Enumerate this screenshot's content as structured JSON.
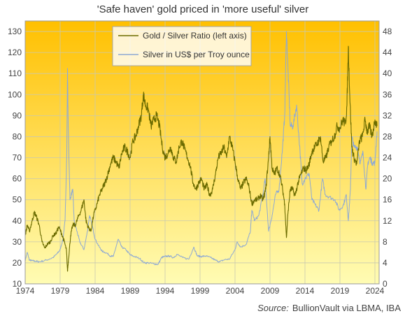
{
  "chart_data": {
    "type": "line",
    "title": "'Safe haven'  gold priced in 'more useful'  silver",
    "source": {
      "label": "Source:",
      "text": "BullionVault via  LBMA, IBA"
    },
    "x_range": [
      1974,
      2024.6
    ],
    "x_ticks": [
      "1974",
      "1979",
      "1984",
      "1989",
      "1994",
      "1999",
      "2004",
      "2009",
      "2014",
      "2019",
      "2024"
    ],
    "y_left": {
      "range": [
        10,
        135
      ],
      "ticks": [
        10,
        20,
        30,
        40,
        50,
        60,
        70,
        80,
        90,
        100,
        110,
        120,
        130
      ]
    },
    "y_right": {
      "range": [
        0,
        50
      ],
      "ticks": [
        0,
        4,
        8,
        12,
        16,
        20,
        24,
        28,
        32,
        36,
        40,
        44,
        48
      ]
    },
    "grid": true,
    "legend": {
      "placement": "top-center"
    },
    "colors": {
      "ratio": "#6b6b00",
      "silver": "#8ea9d4",
      "bg_top": "#ffc000",
      "bg_bottom": "#fffcb4",
      "grid": "#c9c9b0"
    },
    "series": [
      {
        "name": "Gold / Silver Ratio (left axis)",
        "axis": "left",
        "points": [
          [
            1974.0,
            33
          ],
          [
            1974.3,
            38
          ],
          [
            1974.6,
            35
          ],
          [
            1975.0,
            40
          ],
          [
            1975.3,
            44
          ],
          [
            1975.6,
            42
          ],
          [
            1976.0,
            38
          ],
          [
            1976.4,
            30
          ],
          [
            1976.8,
            27
          ],
          [
            1977.2,
            29
          ],
          [
            1977.6,
            30
          ],
          [
            1978.0,
            33
          ],
          [
            1978.4,
            34
          ],
          [
            1978.8,
            37
          ],
          [
            1979.2,
            34
          ],
          [
            1979.6,
            30
          ],
          [
            1979.9,
            26
          ],
          [
            1980.05,
            16
          ],
          [
            1980.2,
            22
          ],
          [
            1980.5,
            33
          ],
          [
            1980.8,
            38
          ],
          [
            1981.2,
            38
          ],
          [
            1981.6,
            42
          ],
          [
            1982.0,
            45
          ],
          [
            1982.4,
            50
          ],
          [
            1982.7,
            40
          ],
          [
            1983.0,
            37
          ],
          [
            1983.4,
            35
          ],
          [
            1983.8,
            43
          ],
          [
            1984.2,
            47
          ],
          [
            1984.6,
            52
          ],
          [
            1985.0,
            55
          ],
          [
            1985.4,
            58
          ],
          [
            1985.8,
            62
          ],
          [
            1986.2,
            67
          ],
          [
            1986.6,
            70
          ],
          [
            1987.0,
            68
          ],
          [
            1987.4,
            65
          ],
          [
            1987.8,
            72
          ],
          [
            1988.2,
            75
          ],
          [
            1988.6,
            73
          ],
          [
            1989.0,
            70
          ],
          [
            1989.4,
            78
          ],
          [
            1989.8,
            80
          ],
          [
            1990.2,
            85
          ],
          [
            1990.6,
            90
          ],
          [
            1990.9,
            100
          ],
          [
            1991.2,
            95
          ],
          [
            1991.6,
            93
          ],
          [
            1992.0,
            85
          ],
          [
            1992.4,
            88
          ],
          [
            1992.8,
            90
          ],
          [
            1993.2,
            85
          ],
          [
            1993.6,
            75
          ],
          [
            1994.0,
            70
          ],
          [
            1994.4,
            72
          ],
          [
            1994.8,
            75
          ],
          [
            1995.2,
            70
          ],
          [
            1995.6,
            68
          ],
          [
            1996.0,
            75
          ],
          [
            1996.4,
            78
          ],
          [
            1996.8,
            74
          ],
          [
            1997.2,
            70
          ],
          [
            1997.6,
            66
          ],
          [
            1998.0,
            58
          ],
          [
            1998.4,
            55
          ],
          [
            1998.8,
            58
          ],
          [
            1999.2,
            60
          ],
          [
            1999.6,
            55
          ],
          [
            2000.0,
            57
          ],
          [
            2000.4,
            52
          ],
          [
            2000.8,
            55
          ],
          [
            2001.2,
            62
          ],
          [
            2001.6,
            70
          ],
          [
            2002.0,
            72
          ],
          [
            2002.4,
            75
          ],
          [
            2002.8,
            70
          ],
          [
            2003.2,
            80
          ],
          [
            2003.6,
            75
          ],
          [
            2004.0,
            68
          ],
          [
            2004.4,
            60
          ],
          [
            2004.8,
            55
          ],
          [
            2005.2,
            58
          ],
          [
            2005.6,
            60
          ],
          [
            2006.0,
            56
          ],
          [
            2006.4,
            48
          ],
          [
            2006.8,
            50
          ],
          [
            2007.2,
            50
          ],
          [
            2007.6,
            52
          ],
          [
            2008.0,
            50
          ],
          [
            2008.4,
            55
          ],
          [
            2008.8,
            70
          ],
          [
            2009.0,
            80
          ],
          [
            2009.3,
            65
          ],
          [
            2009.6,
            62
          ],
          [
            2010.0,
            65
          ],
          [
            2010.4,
            62
          ],
          [
            2010.8,
            55
          ],
          [
            2011.1,
            48
          ],
          [
            2011.35,
            32
          ],
          [
            2011.6,
            45
          ],
          [
            2011.9,
            55
          ],
          [
            2012.2,
            55
          ],
          [
            2012.6,
            52
          ],
          [
            2013.0,
            58
          ],
          [
            2013.4,
            62
          ],
          [
            2013.8,
            65
          ],
          [
            2014.2,
            64
          ],
          [
            2014.6,
            67
          ],
          [
            2015.0,
            73
          ],
          [
            2015.4,
            75
          ],
          [
            2015.8,
            77
          ],
          [
            2016.2,
            80
          ],
          [
            2016.6,
            68
          ],
          [
            2017.0,
            70
          ],
          [
            2017.4,
            75
          ],
          [
            2017.8,
            78
          ],
          [
            2018.2,
            80
          ],
          [
            2018.6,
            85
          ],
          [
            2019.0,
            84
          ],
          [
            2019.4,
            88
          ],
          [
            2019.8,
            86
          ],
          [
            2020.0,
            95
          ],
          [
            2020.2,
            123
          ],
          [
            2020.4,
            100
          ],
          [
            2020.7,
            75
          ],
          [
            2021.0,
            70
          ],
          [
            2021.4,
            67
          ],
          [
            2021.8,
            78
          ],
          [
            2022.2,
            80
          ],
          [
            2022.6,
            88
          ],
          [
            2022.9,
            82
          ],
          [
            2023.2,
            85
          ],
          [
            2023.6,
            80
          ],
          [
            2024.0,
            88
          ],
          [
            2024.3,
            85
          ]
        ]
      },
      {
        "name": "Silver in US$ per Troy ounce",
        "axis": "right",
        "points": [
          [
            1974.0,
            4.5
          ],
          [
            1974.3,
            6.0
          ],
          [
            1974.6,
            4.5
          ],
          [
            1975.0,
            4.4
          ],
          [
            1975.5,
            4.3
          ],
          [
            1976.0,
            4.2
          ],
          [
            1977.0,
            4.5
          ],
          [
            1978.0,
            5.0
          ],
          [
            1978.6,
            5.8
          ],
          [
            1979.0,
            6.5
          ],
          [
            1979.4,
            8.5
          ],
          [
            1979.7,
            12
          ],
          [
            1979.95,
            25
          ],
          [
            1980.05,
            41
          ],
          [
            1980.15,
            30
          ],
          [
            1980.4,
            16
          ],
          [
            1980.8,
            18
          ],
          [
            1981.0,
            12
          ],
          [
            1981.4,
            10
          ],
          [
            1981.8,
            8
          ],
          [
            1982.4,
            6.5
          ],
          [
            1982.9,
            10
          ],
          [
            1983.2,
            13
          ],
          [
            1983.6,
            11
          ],
          [
            1984.0,
            8.5
          ],
          [
            1984.6,
            7
          ],
          [
            1985.0,
            6.2
          ],
          [
            1985.6,
            5.9
          ],
          [
            1986.2,
            5.3
          ],
          [
            1986.6,
            5.2
          ],
          [
            1987.3,
            8.5
          ],
          [
            1987.8,
            7
          ],
          [
            1988.4,
            6.5
          ],
          [
            1989.0,
            5.5
          ],
          [
            1989.6,
            5.2
          ],
          [
            1990.4,
            4.8
          ],
          [
            1991.0,
            4.0
          ],
          [
            1991.6,
            4.0
          ],
          [
            1992.4,
            3.8
          ],
          [
            1993.0,
            3.7
          ],
          [
            1993.5,
            5.0
          ],
          [
            1994.0,
            5.2
          ],
          [
            1994.6,
            5.3
          ],
          [
            1995.2,
            5.0
          ],
          [
            1995.7,
            5.6
          ],
          [
            1996.5,
            5.0
          ],
          [
            1997.4,
            4.7
          ],
          [
            1998.1,
            7.0
          ],
          [
            1998.6,
            5.3
          ],
          [
            1999.2,
            5.2
          ],
          [
            1999.8,
            5.3
          ],
          [
            2000.5,
            5.0
          ],
          [
            2001.2,
            4.5
          ],
          [
            2001.8,
            4.2
          ],
          [
            2002.5,
            4.6
          ],
          [
            2003.2,
            4.7
          ],
          [
            2004.0,
            6.5
          ],
          [
            2004.3,
            8.0
          ],
          [
            2004.8,
            7.0
          ],
          [
            2005.6,
            7.5
          ],
          [
            2006.2,
            10
          ],
          [
            2006.4,
            14
          ],
          [
            2006.8,
            12
          ],
          [
            2007.4,
            13
          ],
          [
            2008.0,
            17
          ],
          [
            2008.3,
            20
          ],
          [
            2008.8,
            10
          ],
          [
            2009.3,
            13
          ],
          [
            2009.8,
            17
          ],
          [
            2010.3,
            18
          ],
          [
            2010.8,
            26
          ],
          [
            2011.1,
            32
          ],
          [
            2011.35,
            48
          ],
          [
            2011.6,
            40
          ],
          [
            2011.9,
            30
          ],
          [
            2012.3,
            30
          ],
          [
            2012.8,
            34
          ],
          [
            2013.3,
            25
          ],
          [
            2013.6,
            19
          ],
          [
            2014.0,
            20
          ],
          [
            2014.6,
            21
          ],
          [
            2015.0,
            16
          ],
          [
            2015.5,
            15
          ],
          [
            2016.0,
            14
          ],
          [
            2016.5,
            20
          ],
          [
            2016.9,
            17
          ],
          [
            2017.5,
            16.5
          ],
          [
            2018.3,
            16
          ],
          [
            2018.9,
            14
          ],
          [
            2019.5,
            15
          ],
          [
            2019.9,
            17
          ],
          [
            2020.2,
            12
          ],
          [
            2020.5,
            18
          ],
          [
            2020.7,
            28
          ],
          [
            2021.0,
            26
          ],
          [
            2021.5,
            26
          ],
          [
            2021.9,
            23
          ],
          [
            2022.3,
            25
          ],
          [
            2022.7,
            18
          ],
          [
            2023.0,
            23
          ],
          [
            2023.3,
            24
          ],
          [
            2023.6,
            23
          ],
          [
            2024.0,
            23
          ],
          [
            2024.3,
            29
          ]
        ]
      }
    ]
  }
}
